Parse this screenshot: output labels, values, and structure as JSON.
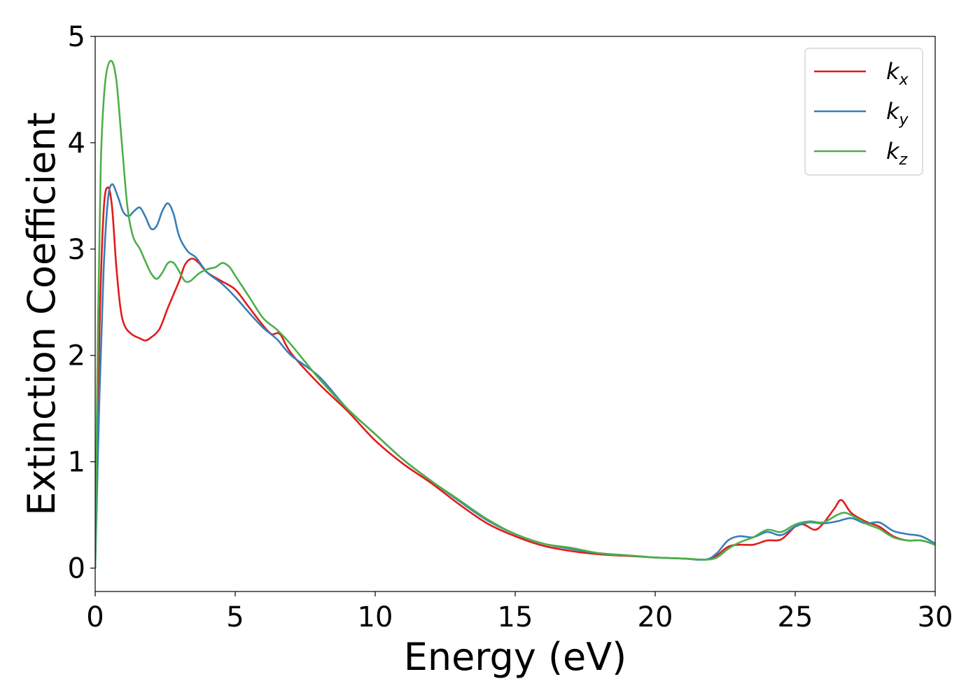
{
  "chart_data": {
    "type": "line",
    "xlabel": "Energy (eV)",
    "ylabel": "Extinction Coefficient",
    "xlim": [
      0,
      30
    ],
    "ylim": [
      -0.22,
      5.0
    ],
    "xticks": [
      0,
      5,
      10,
      15,
      20,
      25,
      30
    ],
    "yticks": [
      0,
      1,
      2,
      3,
      4,
      5
    ],
    "grid": false,
    "legend_position": "top-right",
    "series": [
      {
        "name": "kx",
        "symbol": "k",
        "subscript": "x",
        "color": "#e41a1c",
        "points": [
          [
            0,
            0
          ],
          [
            0.15,
            2.2
          ],
          [
            0.3,
            3.35
          ],
          [
            0.45,
            3.58
          ],
          [
            0.6,
            3.4
          ],
          [
            0.75,
            2.85
          ],
          [
            0.9,
            2.45
          ],
          [
            1.05,
            2.28
          ],
          [
            1.3,
            2.2
          ],
          [
            1.6,
            2.16
          ],
          [
            1.8,
            2.14
          ],
          [
            2.0,
            2.17
          ],
          [
            2.3,
            2.25
          ],
          [
            2.6,
            2.45
          ],
          [
            3.0,
            2.7
          ],
          [
            3.2,
            2.85
          ],
          [
            3.45,
            2.91
          ],
          [
            3.7,
            2.87
          ],
          [
            4.0,
            2.78
          ],
          [
            4.5,
            2.7
          ],
          [
            5.0,
            2.62
          ],
          [
            5.5,
            2.45
          ],
          [
            6.0,
            2.28
          ],
          [
            6.3,
            2.2
          ],
          [
            6.6,
            2.2
          ],
          [
            7.0,
            2.02
          ],
          [
            8.0,
            1.73
          ],
          [
            9.0,
            1.48
          ],
          [
            10.0,
            1.2
          ],
          [
            11.0,
            0.98
          ],
          [
            12.0,
            0.8
          ],
          [
            13.0,
            0.6
          ],
          [
            14.0,
            0.42
          ],
          [
            15.0,
            0.3
          ],
          [
            16.0,
            0.21
          ],
          [
            17.0,
            0.16
          ],
          [
            18.0,
            0.13
          ],
          [
            19.0,
            0.115
          ],
          [
            20.0,
            0.1
          ],
          [
            21.0,
            0.09
          ],
          [
            21.8,
            0.08
          ],
          [
            22.2,
            0.12
          ],
          [
            22.6,
            0.2
          ],
          [
            23.0,
            0.22
          ],
          [
            23.5,
            0.22
          ],
          [
            24.0,
            0.26
          ],
          [
            24.5,
            0.27
          ],
          [
            25.0,
            0.39
          ],
          [
            25.3,
            0.41
          ],
          [
            25.7,
            0.36
          ],
          [
            26.0,
            0.42
          ],
          [
            26.4,
            0.56
          ],
          [
            26.65,
            0.64
          ],
          [
            27.0,
            0.52
          ],
          [
            27.5,
            0.44
          ],
          [
            28.0,
            0.39
          ],
          [
            28.5,
            0.3
          ],
          [
            29.0,
            0.26
          ],
          [
            29.5,
            0.26
          ],
          [
            30.0,
            0.22
          ]
        ]
      },
      {
        "name": "ky",
        "symbol": "k",
        "subscript": "y",
        "color": "#377eb8",
        "points": [
          [
            0,
            0
          ],
          [
            0.15,
            1.6
          ],
          [
            0.3,
            2.8
          ],
          [
            0.45,
            3.45
          ],
          [
            0.6,
            3.61
          ],
          [
            0.8,
            3.5
          ],
          [
            1.0,
            3.35
          ],
          [
            1.2,
            3.31
          ],
          [
            1.4,
            3.36
          ],
          [
            1.6,
            3.39
          ],
          [
            1.8,
            3.3
          ],
          [
            2.0,
            3.19
          ],
          [
            2.2,
            3.22
          ],
          [
            2.4,
            3.36
          ],
          [
            2.6,
            3.43
          ],
          [
            2.8,
            3.33
          ],
          [
            3.0,
            3.12
          ],
          [
            3.3,
            2.98
          ],
          [
            3.6,
            2.92
          ],
          [
            4.0,
            2.78
          ],
          [
            4.5,
            2.68
          ],
          [
            5.0,
            2.55
          ],
          [
            5.5,
            2.4
          ],
          [
            6.0,
            2.26
          ],
          [
            6.5,
            2.15
          ],
          [
            7.0,
            2.0
          ],
          [
            8.0,
            1.8
          ],
          [
            9.0,
            1.5
          ],
          [
            10.0,
            1.26
          ],
          [
            11.0,
            1.02
          ],
          [
            12.0,
            0.82
          ],
          [
            13.0,
            0.63
          ],
          [
            14.0,
            0.45
          ],
          [
            15.0,
            0.32
          ],
          [
            16.0,
            0.23
          ],
          [
            17.0,
            0.18
          ],
          [
            18.0,
            0.14
          ],
          [
            19.0,
            0.12
          ],
          [
            20.0,
            0.1
          ],
          [
            21.0,
            0.09
          ],
          [
            21.8,
            0.08
          ],
          [
            22.2,
            0.14
          ],
          [
            22.6,
            0.26
          ],
          [
            23.0,
            0.3
          ],
          [
            23.5,
            0.29
          ],
          [
            24.0,
            0.34
          ],
          [
            24.5,
            0.31
          ],
          [
            25.0,
            0.39
          ],
          [
            25.5,
            0.43
          ],
          [
            26.0,
            0.42
          ],
          [
            26.5,
            0.44
          ],
          [
            27.0,
            0.47
          ],
          [
            27.5,
            0.42
          ],
          [
            28.0,
            0.43
          ],
          [
            28.5,
            0.35
          ],
          [
            29.0,
            0.32
          ],
          [
            29.5,
            0.3
          ],
          [
            30.0,
            0.23
          ]
        ]
      },
      {
        "name": "kz",
        "symbol": "k",
        "subscript": "z",
        "color": "#4daf4a",
        "points": [
          [
            0,
            0
          ],
          [
            0.1,
            2.3
          ],
          [
            0.2,
            3.8
          ],
          [
            0.35,
            4.55
          ],
          [
            0.55,
            4.77
          ],
          [
            0.75,
            4.6
          ],
          [
            0.95,
            4.0
          ],
          [
            1.15,
            3.4
          ],
          [
            1.35,
            3.12
          ],
          [
            1.6,
            3.0
          ],
          [
            1.8,
            2.88
          ],
          [
            2.0,
            2.77
          ],
          [
            2.2,
            2.72
          ],
          [
            2.4,
            2.78
          ],
          [
            2.6,
            2.87
          ],
          [
            2.8,
            2.87
          ],
          [
            3.0,
            2.79
          ],
          [
            3.2,
            2.7
          ],
          [
            3.4,
            2.7
          ],
          [
            3.7,
            2.77
          ],
          [
            4.0,
            2.81
          ],
          [
            4.3,
            2.83
          ],
          [
            4.55,
            2.87
          ],
          [
            4.8,
            2.83
          ],
          [
            5.0,
            2.75
          ],
          [
            5.5,
            2.55
          ],
          [
            6.0,
            2.35
          ],
          [
            6.5,
            2.24
          ],
          [
            7.0,
            2.1
          ],
          [
            8.0,
            1.78
          ],
          [
            9.0,
            1.5
          ],
          [
            10.0,
            1.26
          ],
          [
            11.0,
            1.02
          ],
          [
            12.0,
            0.82
          ],
          [
            13.0,
            0.64
          ],
          [
            14.0,
            0.46
          ],
          [
            15.0,
            0.32
          ],
          [
            16.0,
            0.23
          ],
          [
            17.0,
            0.19
          ],
          [
            18.0,
            0.14
          ],
          [
            19.0,
            0.12
          ],
          [
            20.0,
            0.1
          ],
          [
            21.0,
            0.09
          ],
          [
            21.8,
            0.08
          ],
          [
            22.2,
            0.1
          ],
          [
            22.6,
            0.18
          ],
          [
            23.0,
            0.24
          ],
          [
            23.5,
            0.29
          ],
          [
            24.0,
            0.36
          ],
          [
            24.5,
            0.34
          ],
          [
            25.0,
            0.41
          ],
          [
            25.5,
            0.44
          ],
          [
            26.0,
            0.43
          ],
          [
            26.5,
            0.5
          ],
          [
            26.8,
            0.52
          ],
          [
            27.2,
            0.47
          ],
          [
            27.6,
            0.41
          ],
          [
            28.0,
            0.37
          ],
          [
            28.5,
            0.29
          ],
          [
            29.0,
            0.26
          ],
          [
            29.5,
            0.26
          ],
          [
            30.0,
            0.22
          ]
        ]
      }
    ]
  }
}
